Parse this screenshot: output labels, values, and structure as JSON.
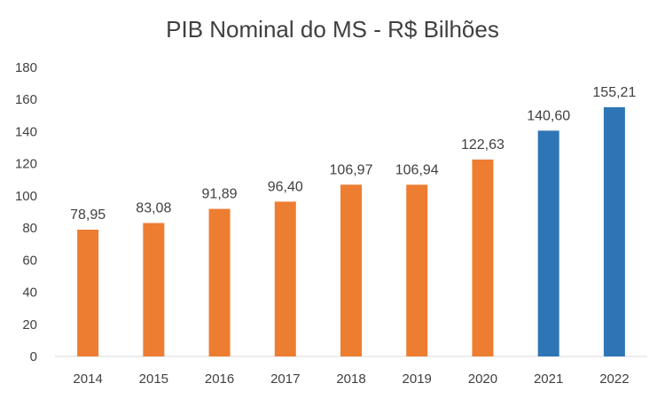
{
  "chart_data": {
    "type": "bar",
    "title": "PIB Nominal do MS - R$ Bilhões",
    "categories": [
      "2014",
      "2015",
      "2016",
      "2017",
      "2018",
      "2019",
      "2020",
      "2021",
      "2022"
    ],
    "values": [
      78.95,
      83.08,
      91.89,
      96.4,
      106.97,
      106.94,
      122.63,
      140.6,
      155.21
    ],
    "data_labels": [
      "78,95",
      "83,08",
      "91,89",
      "96,40",
      "106,97",
      "106,94",
      "122,63",
      "140,60",
      "155,21"
    ],
    "bar_colors": [
      "#ED7D31",
      "#ED7D31",
      "#ED7D31",
      "#ED7D31",
      "#ED7D31",
      "#ED7D31",
      "#ED7D31",
      "#2E75B6",
      "#2E75B6"
    ],
    "ylim": [
      0,
      180
    ],
    "yticks": [
      "0",
      "20",
      "40",
      "60",
      "80",
      "100",
      "120",
      "140",
      "160",
      "180"
    ],
    "grid": false
  }
}
